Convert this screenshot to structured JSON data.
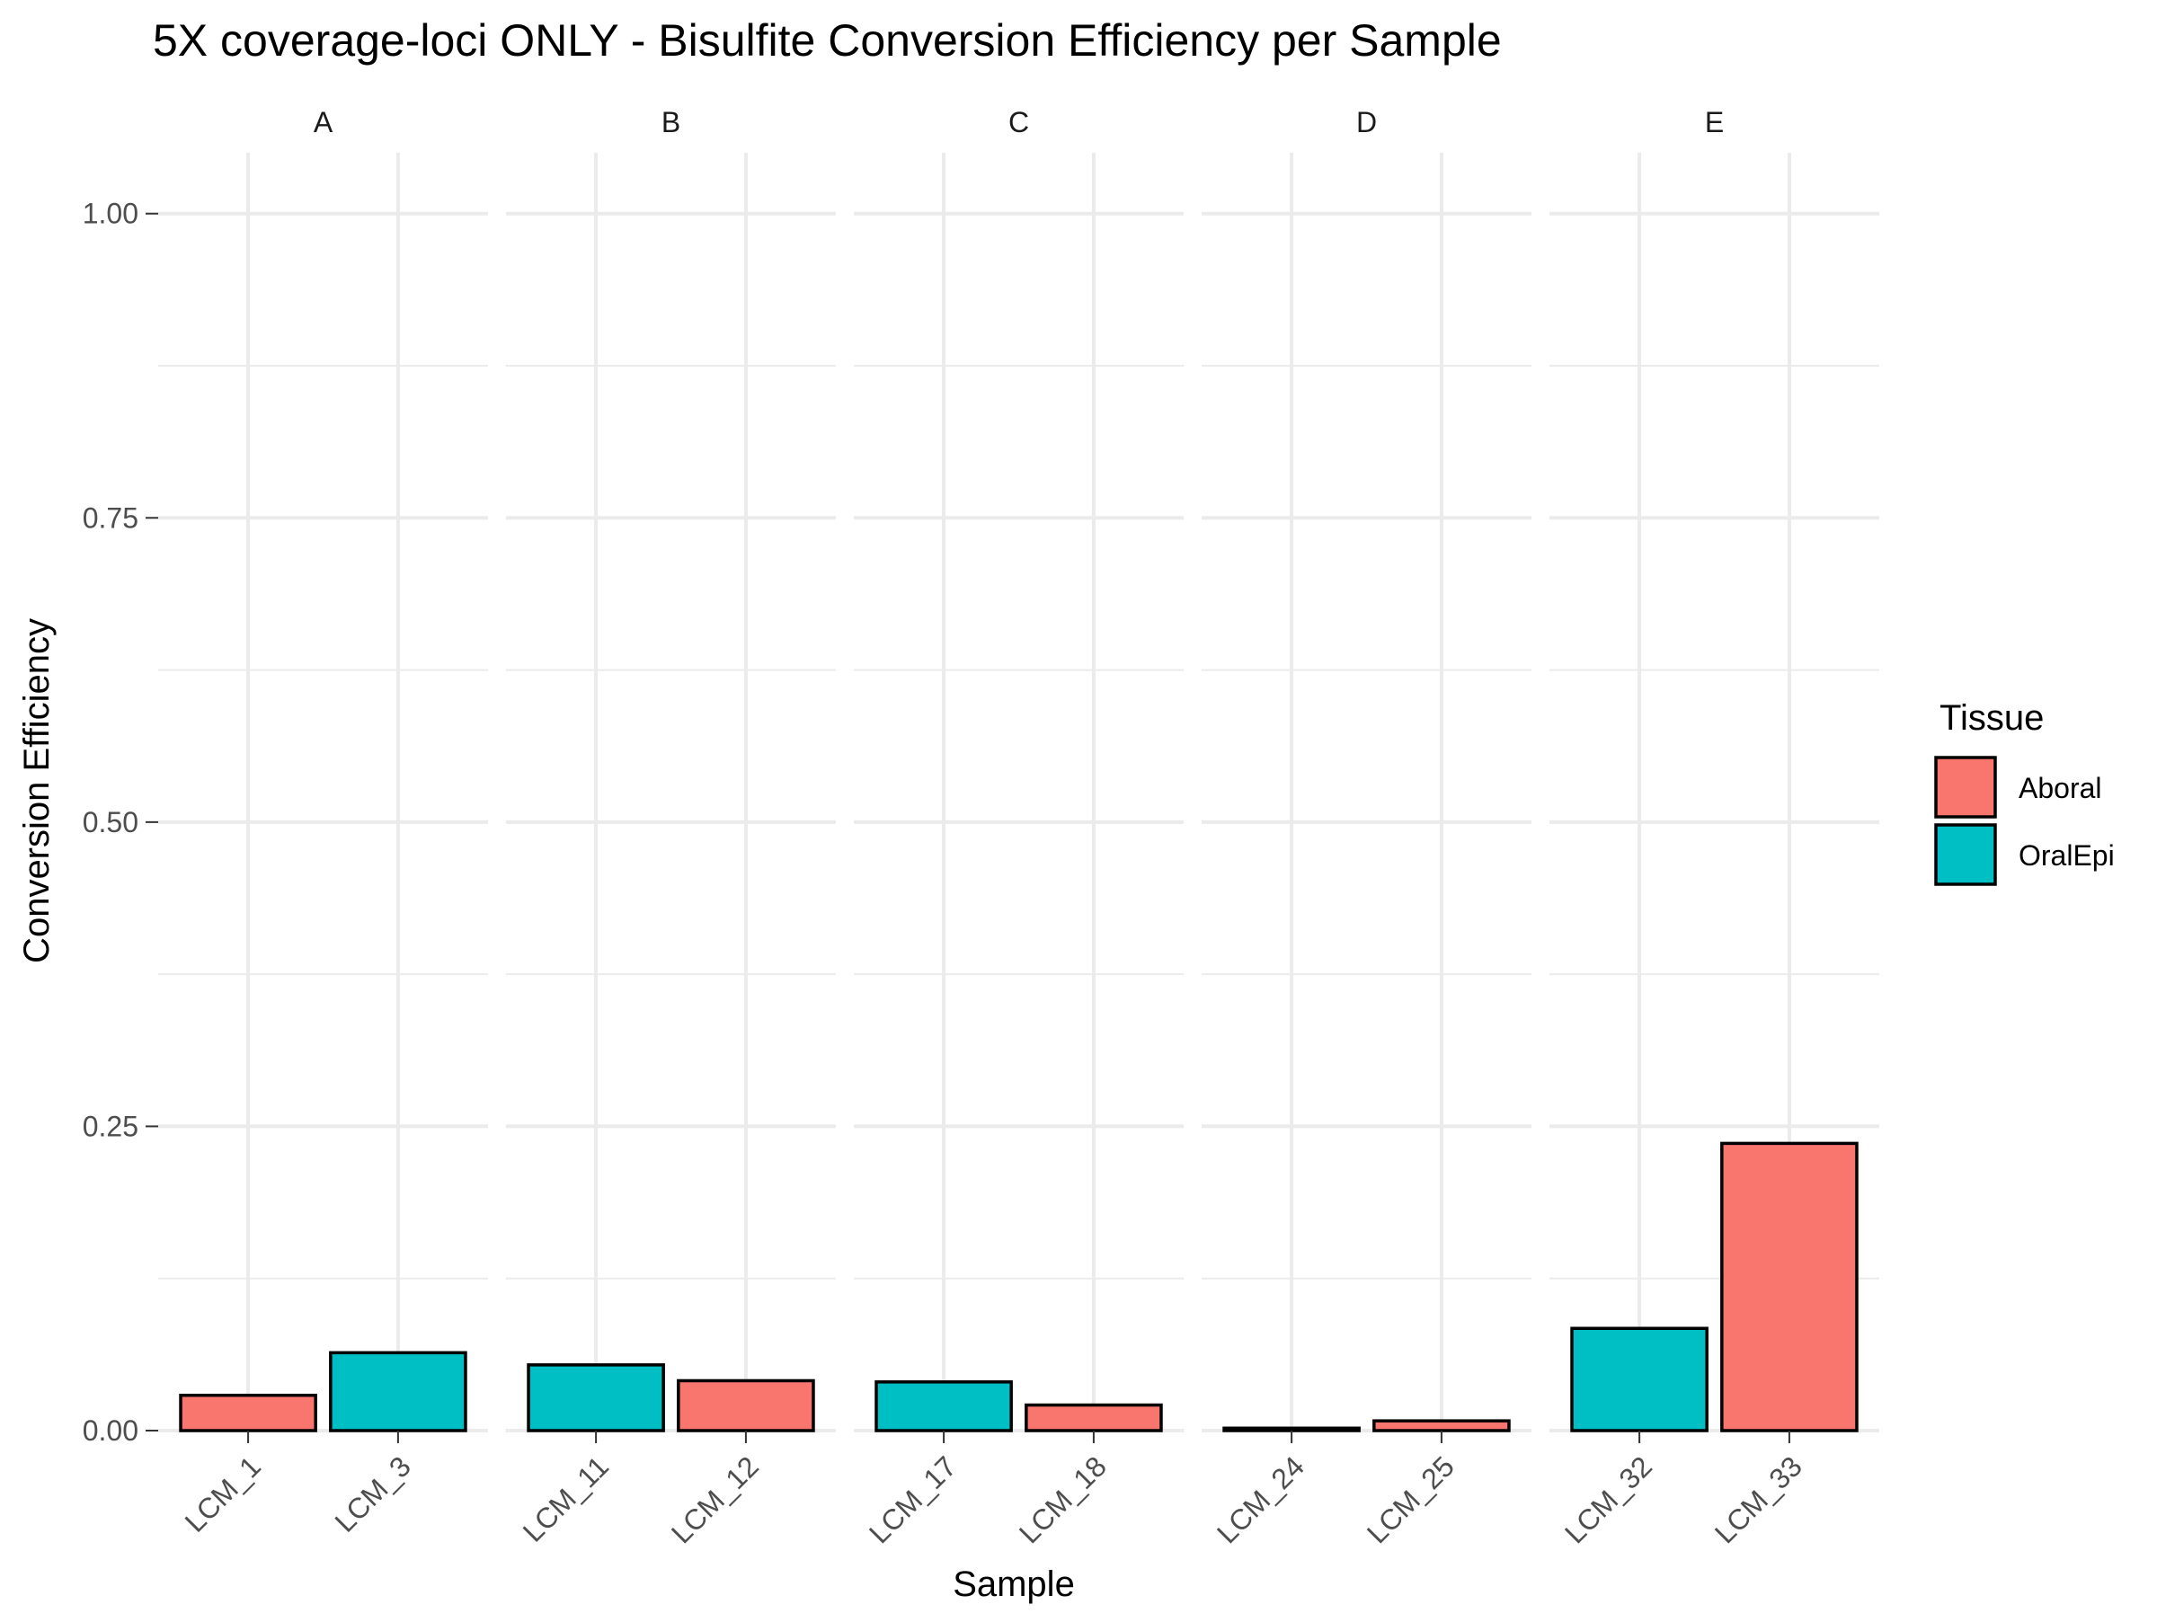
{
  "chart_data": {
    "type": "bar",
    "title": "5X coverage-loci ONLY - Bisulfite Conversion Efficiency per Sample",
    "xlabel": "Sample",
    "ylabel": "Conversion Efficiency",
    "ylim": [
      0,
      1.05
    ],
    "yticks": [
      0.0,
      0.25,
      0.5,
      0.75,
      1.0
    ],
    "ytick_labels": [
      "0.00",
      "0.25",
      "0.50",
      "0.75",
      "1.00"
    ],
    "grid": true,
    "legend": {
      "title": "Tissue",
      "placement": "right",
      "entries": [
        {
          "name": "Aboral",
          "color": "#F8766D"
        },
        {
          "name": "OralEpi",
          "color": "#00BFC4"
        }
      ]
    },
    "facets": [
      {
        "label": "A",
        "bars": [
          {
            "sample": "LCM_1",
            "tissue": "Aboral",
            "value": 0.029
          },
          {
            "sample": "LCM_3",
            "tissue": "OralEpi",
            "value": 0.064
          }
        ]
      },
      {
        "label": "B",
        "bars": [
          {
            "sample": "LCM_11",
            "tissue": "OralEpi",
            "value": 0.054
          },
          {
            "sample": "LCM_12",
            "tissue": "Aboral",
            "value": 0.041
          }
        ]
      },
      {
        "label": "C",
        "bars": [
          {
            "sample": "LCM_17",
            "tissue": "OralEpi",
            "value": 0.04
          },
          {
            "sample": "LCM_18",
            "tissue": "Aboral",
            "value": 0.021
          }
        ]
      },
      {
        "label": "D",
        "bars": [
          {
            "sample": "LCM_24",
            "tissue": "OralEpi",
            "value": 0.002
          },
          {
            "sample": "LCM_25",
            "tissue": "Aboral",
            "value": 0.008
          }
        ]
      },
      {
        "label": "E",
        "bars": [
          {
            "sample": "LCM_32",
            "tissue": "OralEpi",
            "value": 0.084
          },
          {
            "sample": "LCM_33",
            "tissue": "Aboral",
            "value": 0.236
          }
        ]
      }
    ]
  }
}
